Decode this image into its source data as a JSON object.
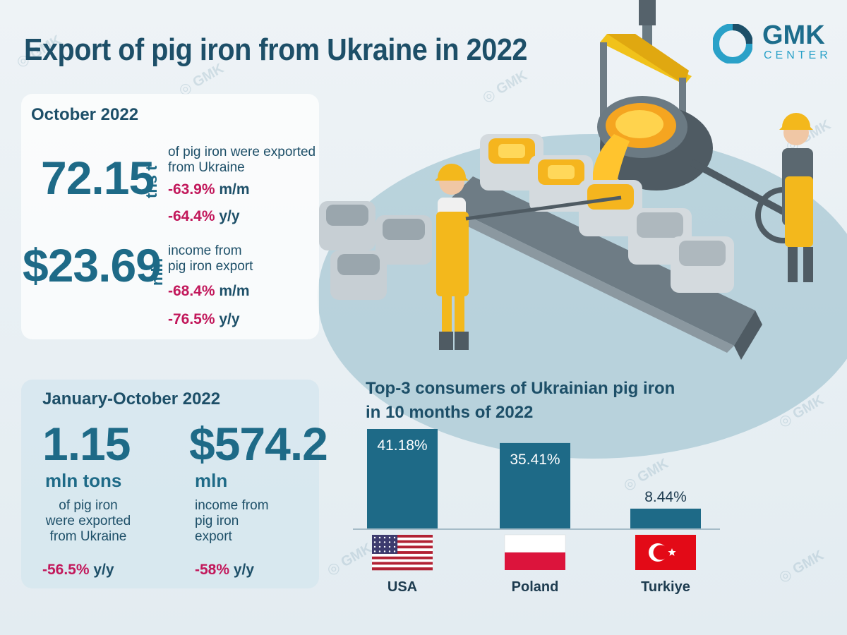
{
  "title": "Export of pig iron from Ukraine in 2022",
  "logo": {
    "word": "GMK",
    "sub": "CENTER"
  },
  "october": {
    "period": "October 2022",
    "exports": {
      "value": "72.15",
      "unit": "ths t",
      "desc_line1": "of pig iron were exported",
      "desc_line2": "from Ukraine",
      "mm_pct": "-63.9%",
      "mm_sfx": " m/m",
      "yy_pct": "-64.4%",
      "yy_sfx": " y/y"
    },
    "income": {
      "value": "$23.69",
      "unit": "mln",
      "desc_line1": "income from",
      "desc_line2": "pig iron export",
      "mm_pct": "-68.4%",
      "mm_sfx": " m/m",
      "yy_pct": "-76.5%",
      "yy_sfx": " y/y"
    }
  },
  "jan_oct": {
    "period": "January-October 2022",
    "exports": {
      "value": "1.15",
      "unit": "mln tons",
      "desc_line1": "of pig iron",
      "desc_line2": "were exported",
      "desc_line3": "from Ukraine",
      "yy_pct": "-56.5%",
      "yy_sfx": " y/y"
    },
    "income": {
      "value": "$574.2",
      "unit": "mln",
      "desc_line1": "income from",
      "desc_line2": "pig iron",
      "desc_line3": "export",
      "yy_pct": "-58%",
      "yy_sfx": " y/y"
    }
  },
  "chart_data": {
    "type": "bar",
    "title_line1": "Top-3 consumers of Ukrainian pig iron",
    "title_line2": "in 10 months of 2022",
    "categories": [
      "USA",
      "Poland",
      "Turkiye"
    ],
    "values": [
      41.18,
      35.41,
      8.44
    ],
    "labels": [
      "41.18%",
      "35.41%",
      "8.44%"
    ],
    "ylim": [
      0,
      41.18
    ],
    "grid": false,
    "bar_color": "#1e6a87"
  },
  "colors": {
    "accent": "#1e6a87",
    "negative": "#c2185b",
    "title": "#1d4f68",
    "molten": "#f6b51e",
    "worker": "#f3b81c"
  }
}
